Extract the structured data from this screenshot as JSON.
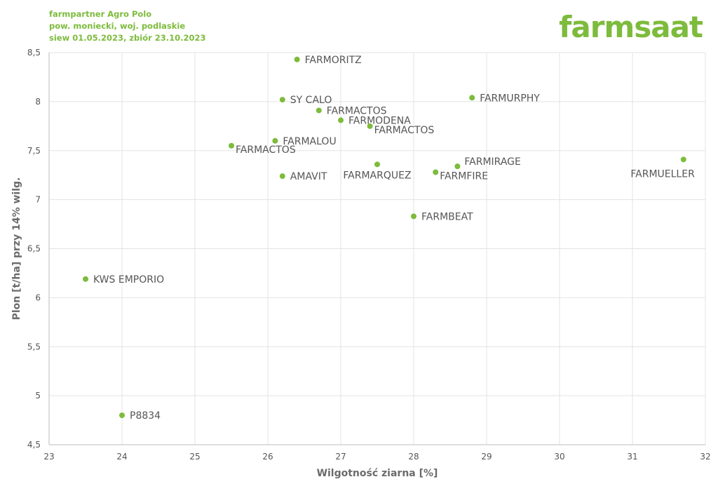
{
  "header": {
    "line1": "farmpartner Agro Polo",
    "line2": "pow. moniecki, woj. podlaskie",
    "line3": "siew 01.05.2023, zbiór 23.10.2023"
  },
  "logo": {
    "text": "farmsaat"
  },
  "colors": {
    "accent": "#7dbb3c",
    "grid": "#e3e3e3",
    "text": "#555555"
  },
  "chart_data": {
    "type": "scatter",
    "xlabel": "Wilgotność ziarna [%]",
    "ylabel": "Plon [t/ha] przy 14% wilg.",
    "xlim": [
      23,
      32
    ],
    "ylim": [
      4.5,
      8.5
    ],
    "x_ticks": [
      "23",
      "24",
      "25",
      "26",
      "27",
      "28",
      "29",
      "30",
      "31",
      "32"
    ],
    "y_ticks": [
      "4,5",
      "5",
      "5,5",
      "6",
      "6,5",
      "7",
      "7,5",
      "8",
      "8,5"
    ],
    "grid": true,
    "points": [
      {
        "label": "FARMORITZ",
        "x": 26.4,
        "y": 8.43,
        "label_pos": "right"
      },
      {
        "label": "SY CALO",
        "x": 26.2,
        "y": 8.02,
        "label_pos": "right"
      },
      {
        "label": "FARMURPHY",
        "x": 28.8,
        "y": 8.04,
        "label_pos": "right"
      },
      {
        "label": "FARMACTOS",
        "x": 26.7,
        "y": 7.91,
        "label_pos": "right"
      },
      {
        "label": "FARMODENA",
        "x": 27.0,
        "y": 7.81,
        "label_pos": "right"
      },
      {
        "label": "FARMACTOS",
        "x": 27.4,
        "y": 7.75,
        "label_pos": "below-right"
      },
      {
        "label": "FARMALOU",
        "x": 26.1,
        "y": 7.6,
        "label_pos": "right"
      },
      {
        "label": "FARMACTOS",
        "x": 25.5,
        "y": 7.55,
        "label_pos": "below-right"
      },
      {
        "label": "FARMIRAGE",
        "x": 28.6,
        "y": 7.34,
        "label_pos": "above-right"
      },
      {
        "label": "FARMARQUEZ",
        "x": 27.5,
        "y": 7.36,
        "label_pos": "below"
      },
      {
        "label": "FARMFIRE",
        "x": 28.3,
        "y": 7.28,
        "label_pos": "below-right"
      },
      {
        "label": "AMAVIT",
        "x": 26.2,
        "y": 7.24,
        "label_pos": "right"
      },
      {
        "label": "FARMUELLER",
        "x": 31.7,
        "y": 7.41,
        "label_pos": "below-left"
      },
      {
        "label": "FARMBEAT",
        "x": 28.0,
        "y": 6.83,
        "label_pos": "right"
      },
      {
        "label": "KWS EMPORIO",
        "x": 23.5,
        "y": 6.19,
        "label_pos": "right"
      },
      {
        "label": "P8834",
        "x": 24.0,
        "y": 4.8,
        "label_pos": "right"
      }
    ]
  }
}
